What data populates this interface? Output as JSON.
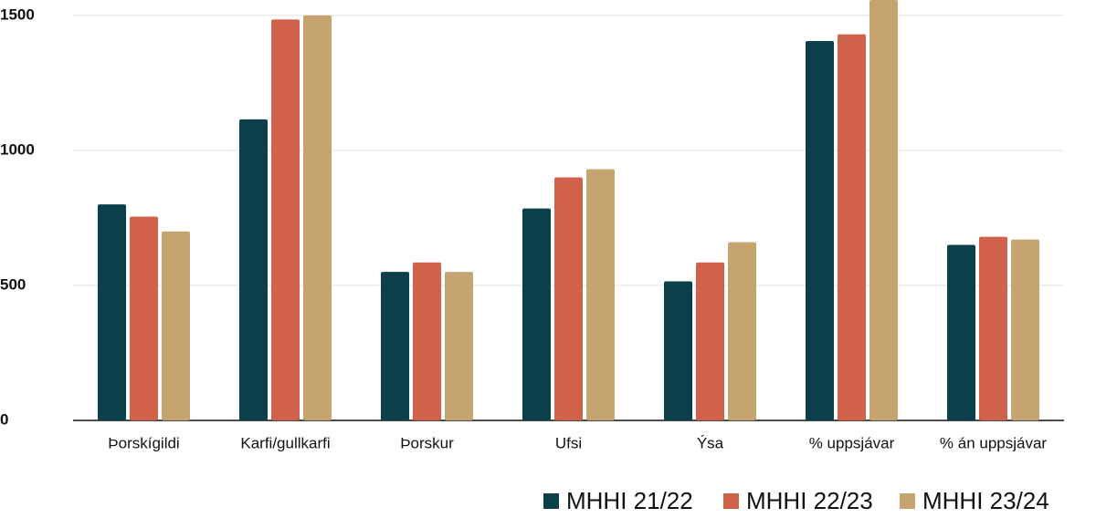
{
  "chart_data": {
    "type": "bar",
    "categories": [
      "Þorskígildi",
      "Karfi/gullkarfi",
      "Þorskur",
      "Ufsi",
      "Ýsa",
      "% uppsjávar",
      "% án uppsjávar"
    ],
    "series": [
      {
        "name": "MHHI 21/22",
        "color": "#0b3f4a",
        "values": [
          800,
          1115,
          550,
          785,
          515,
          1405,
          650
        ]
      },
      {
        "name": "MHHI 22/23",
        "color": "#d0614a",
        "values": [
          755,
          1485,
          585,
          900,
          585,
          1430,
          680
        ]
      },
      {
        "name": "MHHI 23/24",
        "color": "#c6a46f",
        "values": [
          700,
          1500,
          550,
          930,
          660,
          1557,
          670
        ]
      }
    ],
    "ylim": [
      0,
      1557
    ],
    "yticks": [
      0,
      500,
      1000,
      1500
    ],
    "grid": true
  }
}
